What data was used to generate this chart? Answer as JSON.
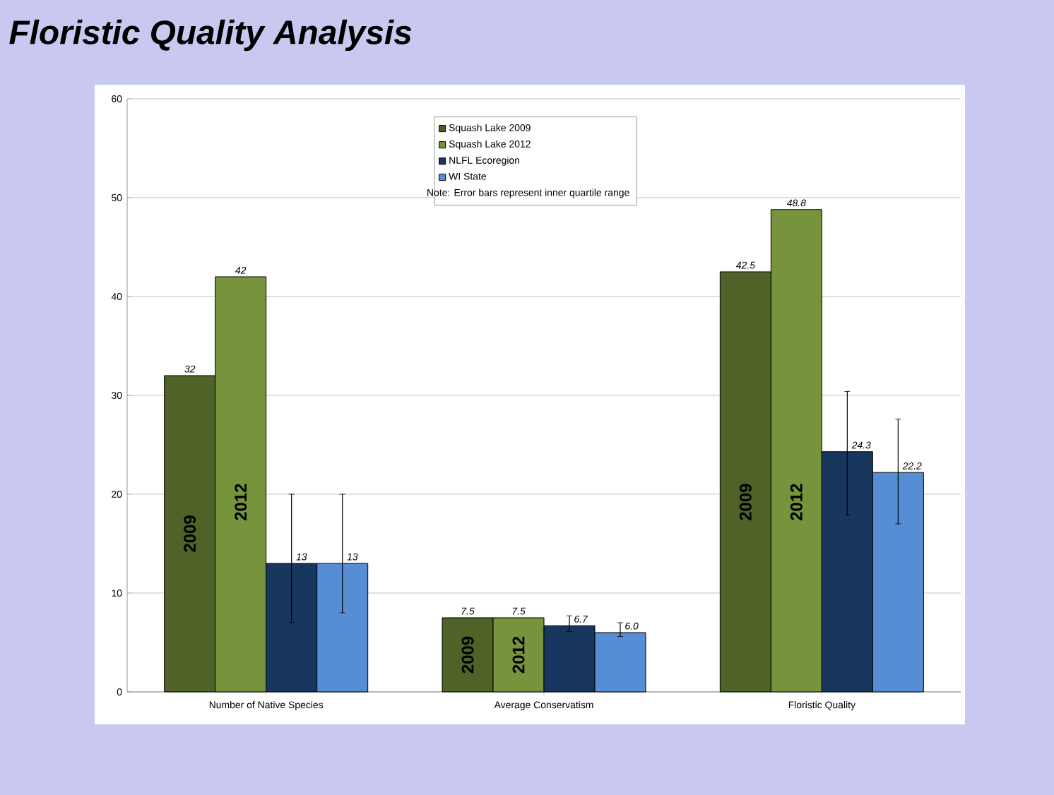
{
  "chart_data": {
    "type": "bar",
    "title": "Floristic Quality Analysis",
    "categories": [
      "Number of Native Species",
      "Average Conservatism",
      "Floristic Quality"
    ],
    "series": [
      {
        "name": "Squash Lake 2009",
        "color": "#4f6228",
        "values": [
          32,
          7.5,
          42.5
        ],
        "value_labels": [
          "32",
          "7.5",
          "42.5"
        ]
      },
      {
        "name": "Squash Lake 2012",
        "color": "#77933c",
        "values": [
          42,
          7.5,
          48.8
        ],
        "value_labels": [
          "42",
          "7.5",
          "48.8"
        ]
      },
      {
        "name": "NLFL Ecoregion",
        "color": "#17375e",
        "values": [
          13,
          6.7,
          24.3
        ],
        "value_labels": [
          "13",
          "6.7",
          "24.3"
        ],
        "errors": [
          [
            7,
            20
          ],
          [
            6.1,
            7.7
          ],
          [
            17.9,
            30.4
          ]
        ]
      },
      {
        "name": "WI State",
        "color": "#558ed5",
        "values": [
          13,
          6.0,
          22.2
        ],
        "value_labels": [
          "13",
          "6.0",
          "22.2"
        ],
        "errors": [
          [
            8,
            20
          ],
          [
            5.6,
            7.0
          ],
          [
            17.0,
            27.6
          ]
        ]
      }
    ],
    "ylim": [
      0,
      60
    ],
    "yticks": [
      0,
      10,
      20,
      30,
      40,
      50,
      60
    ],
    "grid": "y",
    "legend": "top",
    "annotations": [
      "Note:  Error bars represent inner quartile range",
      "2009",
      "2012",
      "2009",
      "2012",
      "2009",
      "2012"
    ]
  }
}
